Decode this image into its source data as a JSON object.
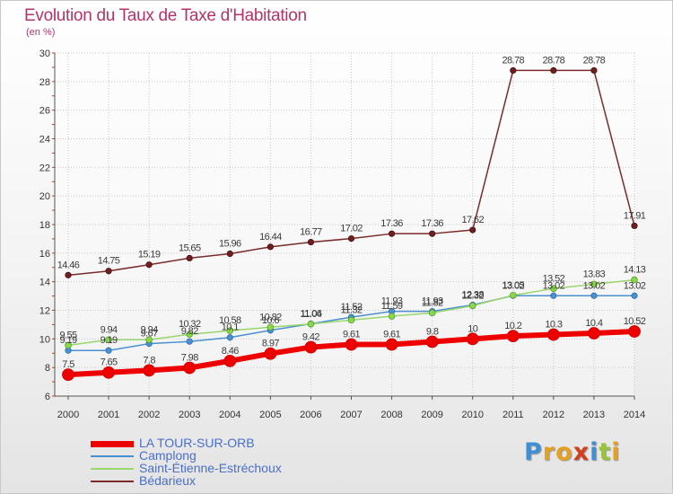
{
  "title": "Evolution du Taux de Taxe d'Habitation",
  "subtitle": "(en %)",
  "logo": {
    "text": "Proxiti",
    "colors": [
      "#3f8fd6",
      "#e6a020",
      "#e6a020",
      "#d04020",
      "#3f8fd6",
      "#9ac23c",
      "#e6a020"
    ]
  },
  "chart_data": {
    "type": "line",
    "x": [
      "2000",
      "2001",
      "2002",
      "2003",
      "2004",
      "2005",
      "2006",
      "2007",
      "2008",
      "2009",
      "2010",
      "2011",
      "2012",
      "2013",
      "2014"
    ],
    "ylim": [
      6,
      30
    ],
    "yticks": [
      6,
      8,
      10,
      12,
      14,
      16,
      18,
      20,
      22,
      24,
      26,
      28,
      30
    ],
    "grid": true,
    "legend_position": "bottom-left",
    "series": [
      {
        "name": "LA TOUR-SUR-ORB",
        "color": "#ee0000",
        "values": [
          7.5,
          7.65,
          7.8,
          7.98,
          8.46,
          8.97,
          9.42,
          9.61,
          9.61,
          9.8,
          10,
          10.2,
          10.3,
          10.4,
          10.52
        ],
        "labels": [
          "7.5",
          "7.65",
          "7.8",
          "7.98",
          "8.46",
          "8.97",
          "9.42",
          "9.61",
          "9.61",
          "9.8",
          "10",
          "10.2",
          "10.3",
          "10.4",
          "10.52"
        ]
      },
      {
        "name": "Camplong",
        "color": "#4a90d0",
        "values": [
          9.19,
          9.19,
          9.67,
          9.82,
          10.1,
          10.6,
          11.06,
          11.52,
          11.93,
          11.93,
          12.38,
          13.02,
          13.02,
          13.02,
          13.02
        ],
        "labels": [
          "9.19",
          "9.19",
          "9.67",
          "9.82",
          "10.1",
          "10.6",
          "11.06",
          "11.52",
          "11.93",
          "11.93",
          "12.38",
          "13.02",
          "13.02",
          "13.02",
          "13.02"
        ]
      },
      {
        "name": "Saint-Étienne-Estréchoux",
        "color": "#99d66c",
        "values": [
          9.55,
          9.94,
          9.94,
          10.32,
          10.58,
          10.82,
          11.04,
          11.32,
          11.59,
          11.82,
          12.32,
          13.05,
          13.52,
          13.83,
          14.13
        ],
        "labels": [
          "9.55",
          "9.94",
          "9.94",
          "10.32",
          "10.58",
          "10.82",
          "11.04",
          "11.32",
          "11.59",
          "11.82",
          "12.32",
          "13.05",
          "13.52",
          "13.83",
          "14.13"
        ]
      },
      {
        "name": "Bédarieux",
        "color": "#7b2b2b",
        "values": [
          14.46,
          14.75,
          15.19,
          15.65,
          15.96,
          16.44,
          16.77,
          17.02,
          17.36,
          17.36,
          17.62,
          28.78,
          28.78,
          28.78,
          17.91
        ],
        "labels": [
          "14.46",
          "14.75",
          "15.19",
          "15.65",
          "15.96",
          "16.44",
          "16.77",
          "17.02",
          "17.36",
          "17.36",
          "17.62",
          "28.78",
          "28.78",
          "28.78",
          "17.91"
        ]
      }
    ]
  }
}
